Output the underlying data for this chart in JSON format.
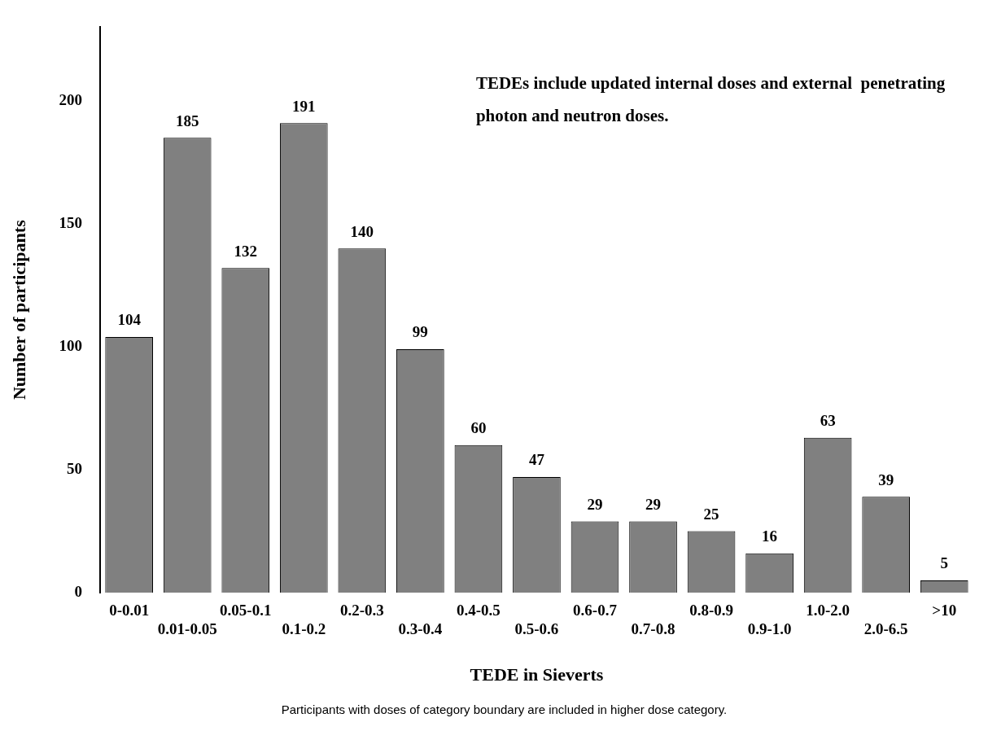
{
  "chart_data": {
    "type": "bar",
    "xlabel": "TEDE in Sieverts",
    "ylabel": "Number of participants",
    "categories": [
      "0-0.01",
      "0.01-0.05",
      "0.05-0.1",
      "0.1-0.2",
      "0.2-0.3",
      "0.3-0.4",
      "0.4-0.5",
      "0.5-0.6",
      "0.6-0.7",
      "0.7-0.8",
      "0.8-0.9",
      "0.9-1.0",
      "1.0-2.0",
      "2.0-6.5",
      ">10"
    ],
    "values": [
      104,
      185,
      132,
      191,
      140,
      99,
      60,
      47,
      29,
      29,
      25,
      16,
      63,
      39,
      5
    ],
    "color": "#808080",
    "ylim": [
      0,
      230
    ],
    "yticks": [
      0,
      50,
      100,
      150,
      200
    ],
    "grid": false,
    "legend": false,
    "data_labels": true,
    "annotations": [
      "TEDEs include updated internal doses and external  penetrating photon and neutron doses.",
      "Participants with doses of category boundary are included in higher dose category."
    ]
  }
}
